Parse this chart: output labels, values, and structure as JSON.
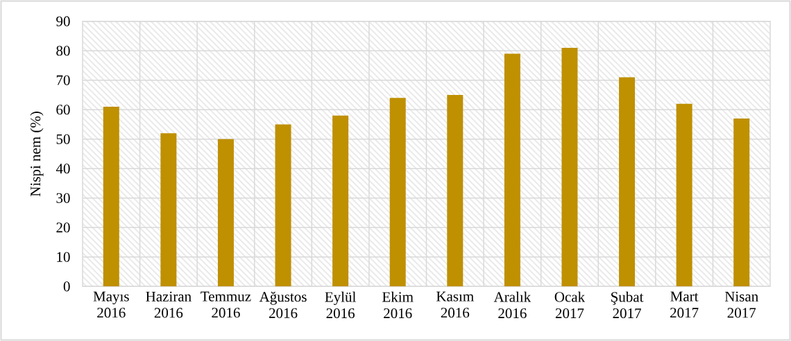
{
  "chart_data": {
    "type": "bar",
    "ylabel": "Nispi nem (%)",
    "categories": [
      "Mayıs 2016",
      "Haziran 2016",
      "Temmuz 2016",
      "Ağustos 2016",
      "Eylül 2016",
      "Ekim 2016",
      "Kasım 2016",
      "Aralık 2016",
      "Ocak 2017",
      "Şubat 2017",
      "Mart 2017",
      "Nisan 2017"
    ],
    "values": [
      61,
      52,
      50,
      55,
      58,
      64,
      65,
      79,
      81,
      71,
      62,
      57
    ],
    "color": "#bf9000",
    "ylim": [
      0,
      90
    ],
    "yticks": [
      0,
      10,
      20,
      30,
      40,
      50,
      60,
      70,
      80,
      90
    ],
    "grid": true
  }
}
